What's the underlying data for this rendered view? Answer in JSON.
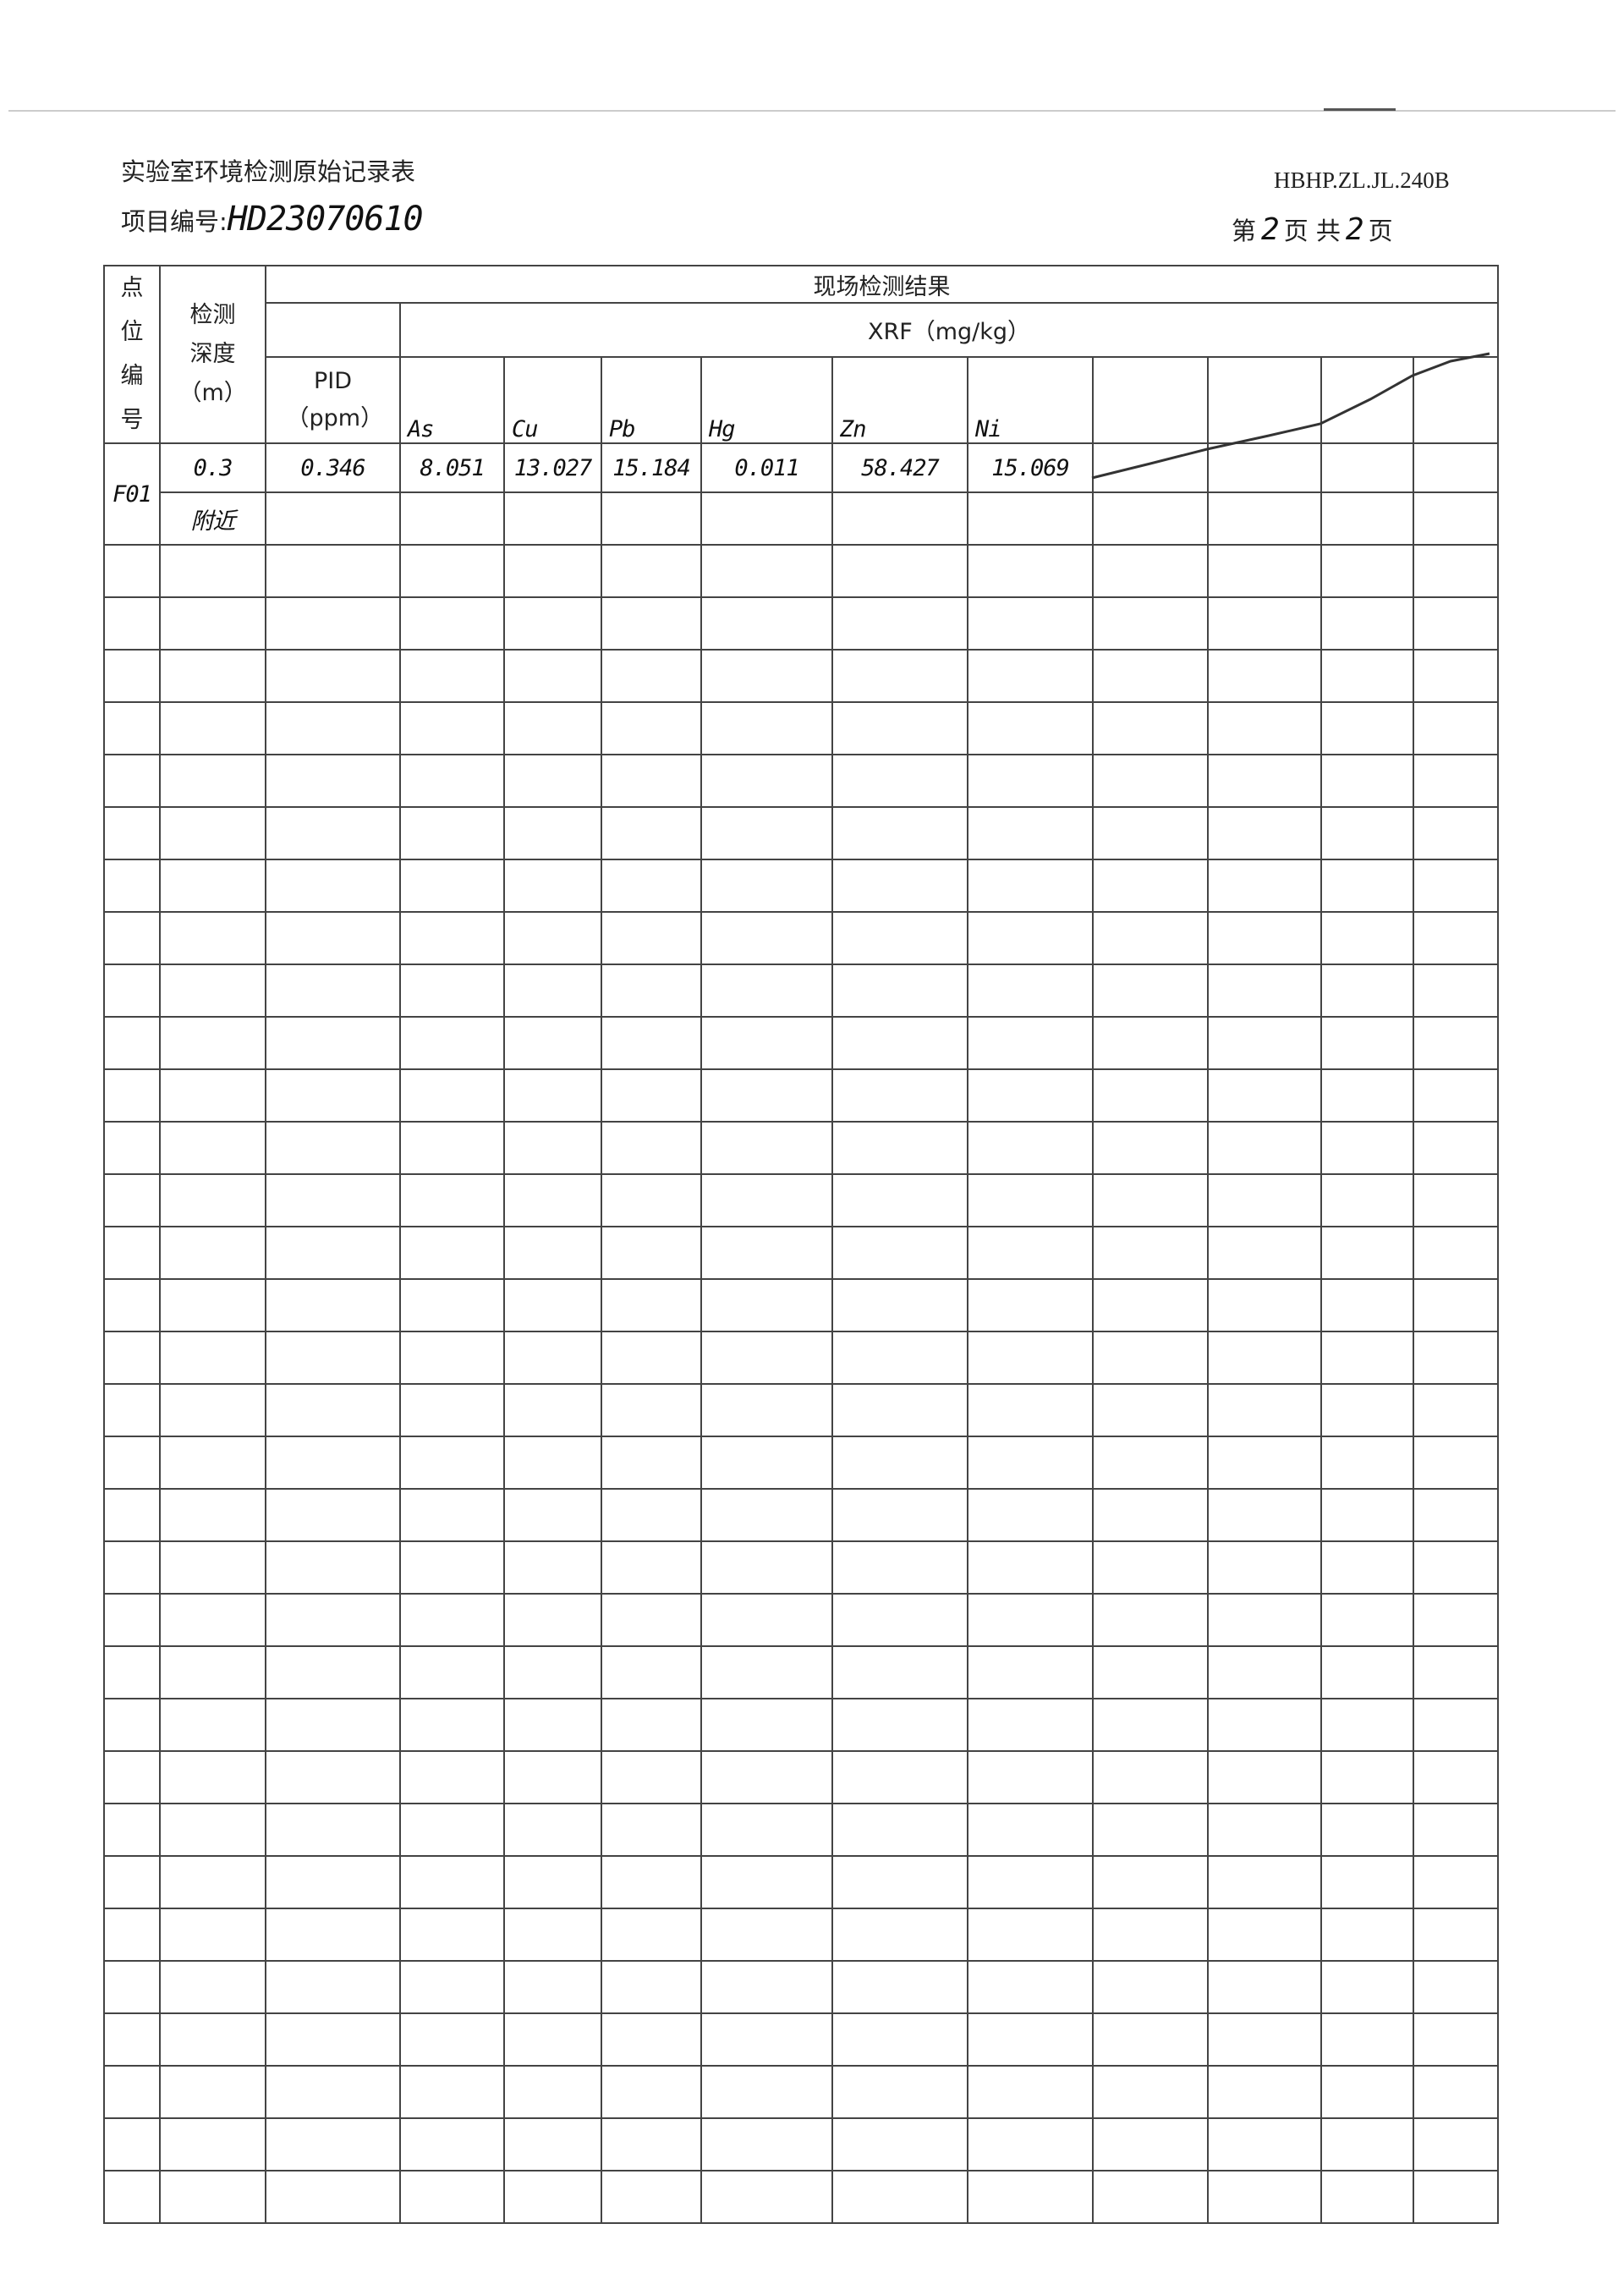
{
  "header": {
    "title": "实验室环境检测原始记录表",
    "project_label": "项目编号:",
    "project_number": "HD23070610",
    "form_code": "HBHP.ZL.JL.240B",
    "page_prefix": "第",
    "page_current": "2",
    "page_mid": "页 共",
    "page_total": "2",
    "page_suffix": "页"
  },
  "table": {
    "col_point": "点位编号",
    "col_depth": "检测深度（m）",
    "group_title": "现场检测结果",
    "xrf_title": "XRF（mg/kg）",
    "pid_label": "PID（ppm）",
    "elements": [
      "As",
      "Cu",
      "Pb",
      "Hg",
      "Zn",
      "Ni"
    ],
    "rows": [
      {
        "point": "F01",
        "depth": "0.3",
        "pid": "0.346",
        "values": [
          "8.051",
          "13.027",
          "15.184",
          "0.011",
          "58.427",
          "15.069"
        ]
      },
      {
        "depth": "附近"
      }
    ],
    "blank_rows": 32
  }
}
